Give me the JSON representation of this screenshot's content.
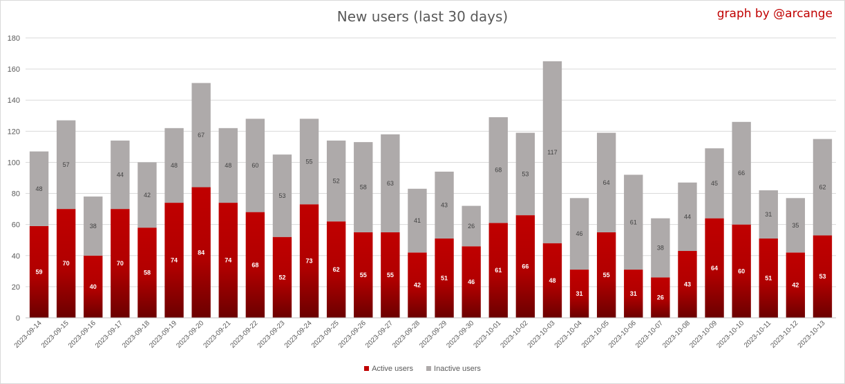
{
  "chart_data": {
    "type": "bar",
    "stacked": true,
    "title": "New users (last 30 days)",
    "credit": "graph by @arcange",
    "categories": [
      "2023-09-14",
      "2023-09-15",
      "2023-09-16",
      "2023-09-17",
      "2023-09-18",
      "2023-09-19",
      "2023-09-20",
      "2023-09-21",
      "2023-09-22",
      "2023-09-23",
      "2023-09-24",
      "2023-09-25",
      "2023-09-26",
      "2023-09-27",
      "2023-09-28",
      "2023-09-29",
      "2023-09-30",
      "2023-10-01",
      "2023-10-02",
      "2023-10-03",
      "2023-10-04",
      "2023-10-05",
      "2023-10-06",
      "2023-10-07",
      "2023-10-08",
      "2023-10-09",
      "2023-10-10",
      "2023-10-11",
      "2023-10-12",
      "2023-10-13"
    ],
    "series": [
      {
        "name": "Active users",
        "color": "#c00000",
        "values": [
          59,
          70,
          40,
          70,
          58,
          74,
          84,
          74,
          68,
          52,
          73,
          62,
          55,
          55,
          42,
          51,
          46,
          61,
          66,
          48,
          31,
          55,
          31,
          26,
          43,
          64,
          60,
          51,
          42,
          53
        ]
      },
      {
        "name": "Inactive users",
        "color": "#aeaaaa",
        "values": [
          48,
          57,
          38,
          44,
          42,
          48,
          67,
          48,
          60,
          53,
          55,
          52,
          58,
          63,
          41,
          43,
          26,
          68,
          53,
          117,
          46,
          64,
          61,
          38,
          44,
          45,
          66,
          31,
          35,
          62
        ]
      }
    ],
    "ylim": [
      0,
      180
    ],
    "yticks": [
      0,
      20,
      40,
      60,
      80,
      100,
      120,
      140,
      160,
      180
    ],
    "grid": true,
    "legend_position": "bottom"
  }
}
